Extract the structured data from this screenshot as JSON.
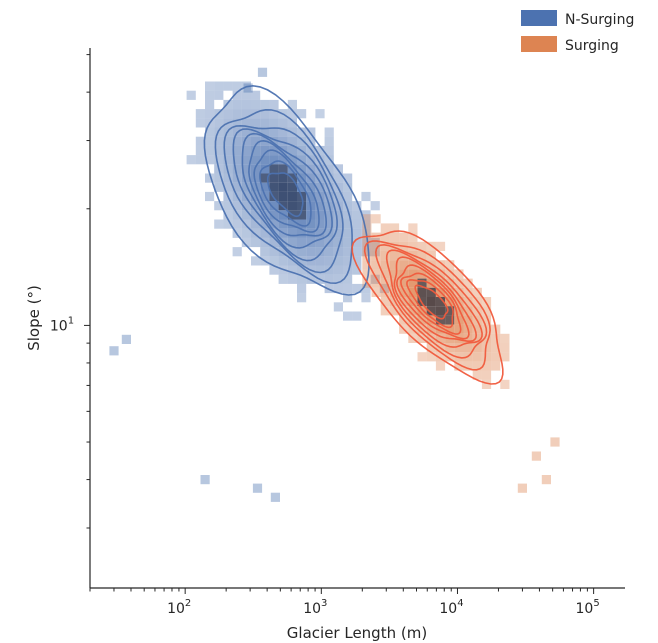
{
  "chart_data": {
    "type": "heatmap",
    "title": "",
    "xlabel": "Glacier Length (m)",
    "ylabel": "Slope (°)",
    "x_scale": "log",
    "y_scale": "log",
    "xlim": [
      20,
      170000
    ],
    "ylim": [
      2.1,
      52
    ],
    "x_ticks": [
      {
        "value": 100,
        "base": "10",
        "exp": "2"
      },
      {
        "value": 1000,
        "base": "10",
        "exp": "3"
      },
      {
        "value": 10000,
        "base": "10",
        "exp": "4"
      },
      {
        "value": 100000,
        "base": "10",
        "exp": "5"
      }
    ],
    "y_ticks": [
      {
        "value": 10,
        "base": "10",
        "exp": "1"
      }
    ],
    "grid": false,
    "legend": {
      "position": "top-right",
      "entries": [
        {
          "name": "N-Surging",
          "color": "#4c72b0"
        },
        {
          "name": "Surging",
          "color": "#dd8452"
        }
      ]
    },
    "series": [
      {
        "name": "N-Surging",
        "color": "#4c72b0",
        "contour_color": "#4c72b0",
        "peak": {
          "x": 550,
          "y": 22
        },
        "spread_log10": {
          "x": 0.28,
          "y": 0.12
        },
        "correlation": -0.55,
        "hist_extent": {
          "x": [
            75,
            20000
          ],
          "y": [
            3.2,
            45
          ]
        },
        "outliers": [
          [
            30,
            8.6
          ],
          [
            37,
            9.2
          ],
          [
            140,
            4.0
          ],
          [
            340,
            3.8
          ],
          [
            460,
            3.6
          ],
          [
            370,
            45
          ],
          [
            290,
            41
          ]
        ]
      },
      {
        "name": "Surging",
        "color": "#dd8452",
        "contour_color": "#f05a3c",
        "peak": {
          "x": 6500,
          "y": 11.5
        },
        "spread_log10": {
          "x": 0.25,
          "y": 0.09
        },
        "correlation": -0.7,
        "hist_extent": {
          "x": [
            2000,
            55000
          ],
          "y": [
            3.7,
            30
          ]
        },
        "outliers": [
          [
            45000,
            4.0
          ],
          [
            52000,
            5.0
          ],
          [
            38000,
            4.6
          ],
          [
            30000,
            3.8
          ]
        ]
      }
    ]
  }
}
